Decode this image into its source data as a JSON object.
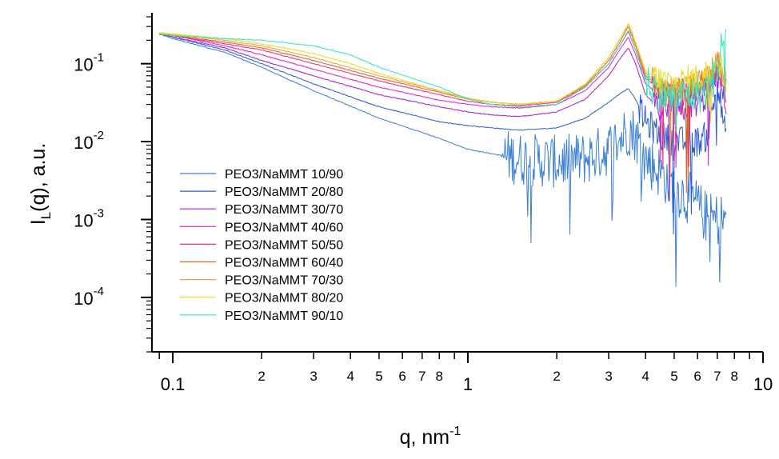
{
  "chart_data": {
    "type": "line",
    "xscale": "log",
    "yscale": "log",
    "xlim": [
      0.085,
      10
    ],
    "ylim": [
      2e-05,
      0.45
    ],
    "grid": false,
    "legend_position": "lower-left",
    "xlabel": "q, nm",
    "xlabel_sup": "-1",
    "ylabel_main": "I",
    "ylabel_sub": "L",
    "ylabel_rest": "(q), a.u.",
    "x_major_ticks": [
      {
        "value": 0.1,
        "label": "0.1"
      },
      {
        "value": 1,
        "label": "1"
      },
      {
        "value": 10,
        "label": "10"
      }
    ],
    "x_minor_ticks": [
      {
        "value": 0.2,
        "label": "2"
      },
      {
        "value": 0.3,
        "label": "3"
      },
      {
        "value": 0.4,
        "label": "4"
      },
      {
        "value": 0.5,
        "label": "5"
      },
      {
        "value": 0.6,
        "label": "6"
      },
      {
        "value": 0.7,
        "label": "7"
      },
      {
        "value": 0.8,
        "label": "8"
      },
      {
        "value": 0.9,
        "label": ""
      },
      {
        "value": 2,
        "label": "2"
      },
      {
        "value": 3,
        "label": "3"
      },
      {
        "value": 4,
        "label": "4"
      },
      {
        "value": 5,
        "label": "5"
      },
      {
        "value": 6,
        "label": "6"
      },
      {
        "value": 7,
        "label": "7"
      },
      {
        "value": 8,
        "label": "8"
      },
      {
        "value": 9,
        "label": ""
      }
    ],
    "y_major_ticks": [
      {
        "value": 0.1,
        "base": "10",
        "exp": "-1"
      },
      {
        "value": 0.01,
        "base": "10",
        "exp": "-2"
      },
      {
        "value": 0.001,
        "base": "10",
        "exp": "-3"
      },
      {
        "value": 0.0001,
        "base": "10",
        "exp": "-4"
      }
    ],
    "series": [
      {
        "name": "PEO3/NaMMT 10/90",
        "color": "#3a7fd0",
        "x": [
          0.09,
          0.1,
          0.15,
          0.2,
          0.3,
          0.5,
          0.8,
          1.0,
          1.2,
          1.5,
          2.0,
          2.5,
          3.0,
          3.3,
          3.5,
          3.7,
          4.0,
          4.5,
          5.0,
          5.5,
          6.0,
          6.5,
          7.0,
          7.5
        ],
        "y": [
          0.24,
          0.21,
          0.14,
          0.09,
          0.045,
          0.02,
          0.011,
          0.008,
          0.007,
          0.006,
          0.0055,
          0.006,
          0.008,
          0.011,
          0.015,
          0.012,
          0.006,
          0.004,
          0.0025,
          0.002,
          0.0015,
          0.001,
          0.001,
          0.001
        ],
        "noise_from": 1.3,
        "noise_amp": 0.35
      },
      {
        "name": "PEO3/NaMMT 20/80",
        "color": "#2d5bd6",
        "x": [
          0.09,
          0.1,
          0.15,
          0.2,
          0.3,
          0.5,
          0.8,
          1.0,
          1.2,
          1.5,
          2.0,
          2.5,
          3.0,
          3.3,
          3.5,
          3.7,
          4.0,
          4.5,
          5.0,
          5.5,
          6.0,
          6.5,
          7.0,
          7.5
        ],
        "y": [
          0.24,
          0.22,
          0.15,
          0.1,
          0.055,
          0.028,
          0.018,
          0.016,
          0.015,
          0.014,
          0.015,
          0.02,
          0.032,
          0.042,
          0.048,
          0.035,
          0.018,
          0.012,
          0.01,
          0.01,
          0.01,
          0.012,
          0.06,
          0.01
        ],
        "noise_from": 3.8,
        "noise_amp": 0.2
      },
      {
        "name": "PEO3/NaMMT 30/70",
        "color": "#a020d8",
        "x": [
          0.09,
          0.1,
          0.15,
          0.2,
          0.3,
          0.5,
          0.8,
          1.0,
          1.2,
          1.5,
          2.0,
          2.5,
          3.0,
          3.3,
          3.5,
          3.7,
          4.0,
          4.5,
          5.0,
          5.5,
          6.0,
          6.5,
          7.0,
          7.5
        ],
        "y": [
          0.24,
          0.22,
          0.16,
          0.11,
          0.07,
          0.04,
          0.028,
          0.024,
          0.022,
          0.021,
          0.024,
          0.035,
          0.07,
          0.12,
          0.16,
          0.1,
          0.04,
          0.025,
          0.022,
          0.025,
          0.03,
          0.035,
          0.07,
          0.03
        ],
        "noise_from": 4.2,
        "noise_amp": 0.15
      },
      {
        "name": "PEO3/NaMMT 40/60",
        "color": "#e020c8",
        "x": [
          0.09,
          0.1,
          0.15,
          0.2,
          0.3,
          0.5,
          0.8,
          1.0,
          1.2,
          1.5,
          2.0,
          2.5,
          3.0,
          3.3,
          3.5,
          3.7,
          4.0,
          4.5,
          5.0,
          5.5,
          6.0,
          6.5,
          7.0,
          7.5
        ],
        "y": [
          0.24,
          0.23,
          0.17,
          0.13,
          0.085,
          0.05,
          0.034,
          0.03,
          0.028,
          0.027,
          0.03,
          0.045,
          0.09,
          0.16,
          0.22,
          0.13,
          0.055,
          0.04,
          0.035,
          0.04,
          0.045,
          0.05,
          0.08,
          0.04
        ],
        "noise_from": 4.2,
        "noise_amp": 0.15
      },
      {
        "name": "PEO3/NaMMT 50/50",
        "color": "#e8307a",
        "x": [
          0.09,
          0.1,
          0.15,
          0.2,
          0.3,
          0.5,
          0.8,
          1.0,
          1.2,
          1.5,
          2.0,
          2.5,
          3.0,
          3.3,
          3.5,
          3.7,
          4.0,
          4.5,
          5.0,
          5.5,
          6.0,
          6.5,
          7.0,
          7.5
        ],
        "y": [
          0.24,
          0.23,
          0.18,
          0.15,
          0.1,
          0.06,
          0.04,
          0.033,
          0.03,
          0.029,
          0.032,
          0.05,
          0.1,
          0.18,
          0.26,
          0.15,
          0.065,
          0.045,
          0.04,
          0.045,
          0.05,
          0.06,
          0.09,
          0.05
        ],
        "noise_from": 4.2,
        "noise_amp": 0.15
      },
      {
        "name": "PEO3/NaMMT 60/40",
        "color": "#d8602a",
        "x": [
          0.09,
          0.1,
          0.15,
          0.2,
          0.3,
          0.5,
          0.8,
          1.0,
          1.2,
          1.5,
          2.0,
          2.5,
          3.0,
          3.3,
          3.5,
          3.7,
          4.0,
          4.5,
          5.0,
          5.5,
          6.0,
          6.5,
          7.0,
          7.5
        ],
        "y": [
          0.24,
          0.23,
          0.19,
          0.16,
          0.11,
          0.065,
          0.043,
          0.035,
          0.032,
          0.03,
          0.033,
          0.052,
          0.11,
          0.2,
          0.3,
          0.17,
          0.07,
          0.05,
          0.045,
          0.05,
          0.055,
          0.065,
          0.1,
          0.055
        ],
        "noise_from": 4.2,
        "noise_amp": 0.15
      },
      {
        "name": "PEO3/NaMMT 70/30",
        "color": "#f0a040",
        "x": [
          0.09,
          0.1,
          0.15,
          0.2,
          0.3,
          0.5,
          0.8,
          1.0,
          1.2,
          1.5,
          2.0,
          2.5,
          3.0,
          3.3,
          3.5,
          3.7,
          4.0,
          4.5,
          5.0,
          5.5,
          6.0,
          6.5,
          7.0,
          7.5
        ],
        "y": [
          0.25,
          0.24,
          0.2,
          0.17,
          0.12,
          0.07,
          0.045,
          0.036,
          0.032,
          0.03,
          0.033,
          0.054,
          0.12,
          0.22,
          0.32,
          0.18,
          0.075,
          0.055,
          0.05,
          0.055,
          0.06,
          0.07,
          0.12,
          0.06
        ],
        "noise_from": 4.2,
        "noise_amp": 0.15
      },
      {
        "name": "PEO3/NaMMT 80/20",
        "color": "#e8e020",
        "x": [
          0.09,
          0.1,
          0.15,
          0.2,
          0.3,
          0.4,
          0.5,
          0.8,
          1.0,
          1.2,
          1.5,
          2.0,
          2.5,
          3.0,
          3.3,
          3.5,
          3.7,
          4.0,
          4.5,
          5.0,
          5.5,
          6.0,
          6.5,
          7.0,
          7.5
        ],
        "y": [
          0.25,
          0.24,
          0.21,
          0.18,
          0.135,
          0.1,
          0.075,
          0.045,
          0.035,
          0.032,
          0.03,
          0.033,
          0.055,
          0.12,
          0.22,
          0.33,
          0.19,
          0.08,
          0.06,
          0.055,
          0.06,
          0.065,
          0.075,
          0.13,
          0.06
        ],
        "noise_from": 4.2,
        "noise_amp": 0.2
      },
      {
        "name": "PEO3/NaMMT 90/10",
        "color": "#30e8b8",
        "x": [
          0.09,
          0.1,
          0.15,
          0.2,
          0.3,
          0.4,
          0.5,
          0.8,
          1.0,
          1.2,
          1.5,
          2.0,
          2.5,
          3.0,
          3.3,
          3.5,
          3.7,
          4.0,
          4.5,
          5.0,
          5.5,
          6.0,
          6.5,
          7.0,
          7.5
        ],
        "y": [
          0.24,
          0.23,
          0.21,
          0.2,
          0.17,
          0.13,
          0.09,
          0.05,
          0.035,
          0.03,
          0.028,
          0.03,
          0.05,
          0.1,
          0.18,
          0.27,
          0.15,
          0.06,
          0.04,
          0.035,
          0.04,
          0.04,
          0.045,
          0.09,
          0.3
        ],
        "noise_from": 4.0,
        "noise_amp": 0.25
      }
    ]
  }
}
